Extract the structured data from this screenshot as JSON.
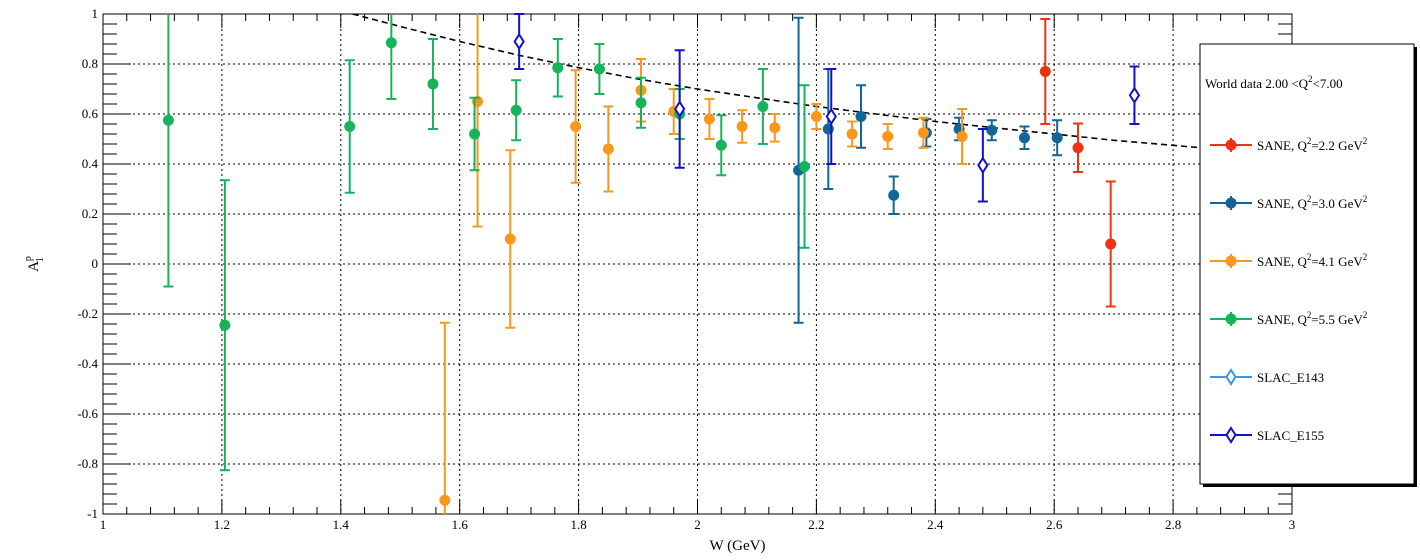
{
  "chart_data": {
    "type": "scatter",
    "title": "",
    "xlabel": "W (GeV)",
    "ylabel": "A",
    "ylabel_sub": "1",
    "ylabel_sup": "p",
    "xlim": [
      1,
      3
    ],
    "ylim": [
      -1,
      1
    ],
    "x_ticks": [
      {
        "v": 1,
        "label": "1"
      },
      {
        "v": 1.2,
        "label": "1.2"
      },
      {
        "v": 1.4,
        "label": "1.4"
      },
      {
        "v": 1.6,
        "label": "1.6"
      },
      {
        "v": 1.8,
        "label": "1.8"
      },
      {
        "v": 2,
        "label": "2"
      },
      {
        "v": 2.2,
        "label": "2.2"
      },
      {
        "v": 2.4,
        "label": "2.4"
      },
      {
        "v": 2.6,
        "label": "2.6"
      },
      {
        "v": 2.8,
        "label": "2.8"
      },
      {
        "v": 3,
        "label": "3"
      }
    ],
    "y_ticks": [
      {
        "v": -1,
        "label": "-1"
      },
      {
        "v": -0.8,
        "label": "-0.8"
      },
      {
        "v": -0.6,
        "label": "-0.6"
      },
      {
        "v": -0.4,
        "label": "-0.4"
      },
      {
        "v": -0.2,
        "label": "-0.2"
      },
      {
        "v": 0,
        "label": "0"
      },
      {
        "v": 0.2,
        "label": "0.2"
      },
      {
        "v": 0.4,
        "label": "0.4"
      },
      {
        "v": 0.6,
        "label": "0.6"
      },
      {
        "v": 0.8,
        "label": "0.8"
      },
      {
        "v": 1,
        "label": "1"
      }
    ],
    "grid": true,
    "legend": {
      "placement": "right",
      "header_prefix": "World data 2.00 <Q",
      "header_sup": "2",
      "header_suffix": "<7.00"
    },
    "series": [
      {
        "name_prefix": "SANE, Q",
        "name_sup": "2",
        "name_suffix": "=2.2 GeV",
        "name_sup2": "2",
        "color": "#ee3311",
        "marker": "circle",
        "points": [
          {
            "x": 2.585,
            "y": 0.77,
            "err": 0.21
          },
          {
            "x": 2.64,
            "y": 0.465,
            "err": 0.097
          },
          {
            "x": 2.695,
            "y": 0.08,
            "err": 0.25
          }
        ]
      },
      {
        "name_prefix": "SANE, Q",
        "name_sup": "2",
        "name_suffix": "=3.0 GeV",
        "name_sup2": "2",
        "color": "#116699",
        "marker": "circle",
        "points": [
          {
            "x": 2.17,
            "y": 0.375,
            "err": 0.61
          },
          {
            "x": 2.22,
            "y": 0.54,
            "err": 0.24
          },
          {
            "x": 2.275,
            "y": 0.59,
            "err": 0.125
          },
          {
            "x": 2.33,
            "y": 0.275,
            "err": 0.075
          },
          {
            "x": 2.385,
            "y": 0.525,
            "err": 0.055
          },
          {
            "x": 2.44,
            "y": 0.54,
            "err": 0.045
          },
          {
            "x": 2.495,
            "y": 0.535,
            "err": 0.04
          },
          {
            "x": 2.55,
            "y": 0.505,
            "err": 0.045
          },
          {
            "x": 2.605,
            "y": 0.505,
            "err": 0.07
          }
        ]
      },
      {
        "name_prefix": "SANE, Q",
        "name_sup": "2",
        "name_suffix": "=4.1 GeV",
        "name_sup2": "2",
        "color": "#f7981d",
        "marker": "circle",
        "points": [
          {
            "x": 1.575,
            "y": -0.945,
            "err": 0.71
          },
          {
            "x": 1.63,
            "y": 0.65,
            "err": 0.5
          },
          {
            "x": 1.685,
            "y": 0.1,
            "err": 0.355
          },
          {
            "x": 1.795,
            "y": 0.55,
            "err": 0.225
          },
          {
            "x": 1.85,
            "y": 0.46,
            "err": 0.17
          },
          {
            "x": 1.905,
            "y": 0.695,
            "err": 0.125
          },
          {
            "x": 1.96,
            "y": 0.61,
            "err": 0.09
          },
          {
            "x": 2.02,
            "y": 0.58,
            "err": 0.08
          },
          {
            "x": 2.075,
            "y": 0.55,
            "err": 0.065
          },
          {
            "x": 2.13,
            "y": 0.545,
            "err": 0.055
          },
          {
            "x": 2.2,
            "y": 0.59,
            "err": 0.05
          },
          {
            "x": 2.26,
            "y": 0.52,
            "err": 0.05
          },
          {
            "x": 2.32,
            "y": 0.51,
            "err": 0.05
          },
          {
            "x": 2.38,
            "y": 0.525,
            "err": 0.06
          },
          {
            "x": 2.445,
            "y": 0.51,
            "err": 0.11
          }
        ]
      },
      {
        "name_prefix": "SANE, Q",
        "name_sup": "2",
        "name_suffix": "=5.5 GeV",
        "name_sup2": "2",
        "color": "#16b35a",
        "marker": "circle",
        "points": [
          {
            "x": 1.11,
            "y": 0.575,
            "err": 0.665
          },
          {
            "x": 1.205,
            "y": -0.245,
            "err": 0.58
          },
          {
            "x": 1.415,
            "y": 0.55,
            "err": 0.265
          },
          {
            "x": 1.485,
            "y": 0.885,
            "err": 0.225
          },
          {
            "x": 1.555,
            "y": 0.72,
            "err": 0.18
          },
          {
            "x": 1.625,
            "y": 0.52,
            "err": 0.145
          },
          {
            "x": 1.695,
            "y": 0.615,
            "err": 0.12
          },
          {
            "x": 1.765,
            "y": 0.785,
            "err": 0.115
          },
          {
            "x": 1.835,
            "y": 0.78,
            "err": 0.1
          },
          {
            "x": 1.905,
            "y": 0.645,
            "err": 0.1
          },
          {
            "x": 1.97,
            "y": 0.6,
            "err": 0.1
          },
          {
            "x": 2.04,
            "y": 0.475,
            "err": 0.12
          },
          {
            "x": 2.11,
            "y": 0.63,
            "err": 0.15
          },
          {
            "x": 2.18,
            "y": 0.39,
            "err": 0.325
          }
        ]
      },
      {
        "name": "SLAC_E143",
        "color": "#3399ee",
        "marker": "diamond-open",
        "points": []
      },
      {
        "name": "SLAC_E155",
        "color": "#1111cc",
        "marker": "diamond-open",
        "points": [
          {
            "x": 1.7,
            "y": 0.89,
            "err": 0.11
          },
          {
            "x": 1.97,
            "y": 0.62,
            "err": 0.235
          },
          {
            "x": 2.225,
            "y": 0.59,
            "err": 0.19
          },
          {
            "x": 2.48,
            "y": 0.395,
            "err": 0.145
          },
          {
            "x": 2.735,
            "y": 0.675,
            "err": 0.115
          }
        ]
      }
    ],
    "curve": {
      "style": "dashed",
      "color": "#000000",
      "x": [
        1.42,
        1.5,
        1.6,
        1.7,
        1.8,
        1.9,
        2.0,
        2.1,
        2.2,
        2.3,
        2.4,
        2.5,
        2.6,
        2.7,
        2.8,
        2.87
      ],
      "y": [
        1.0,
        0.95,
        0.89,
        0.835,
        0.785,
        0.74,
        0.7,
        0.665,
        0.63,
        0.6,
        0.57,
        0.545,
        0.52,
        0.495,
        0.475,
        0.46
      ]
    }
  }
}
